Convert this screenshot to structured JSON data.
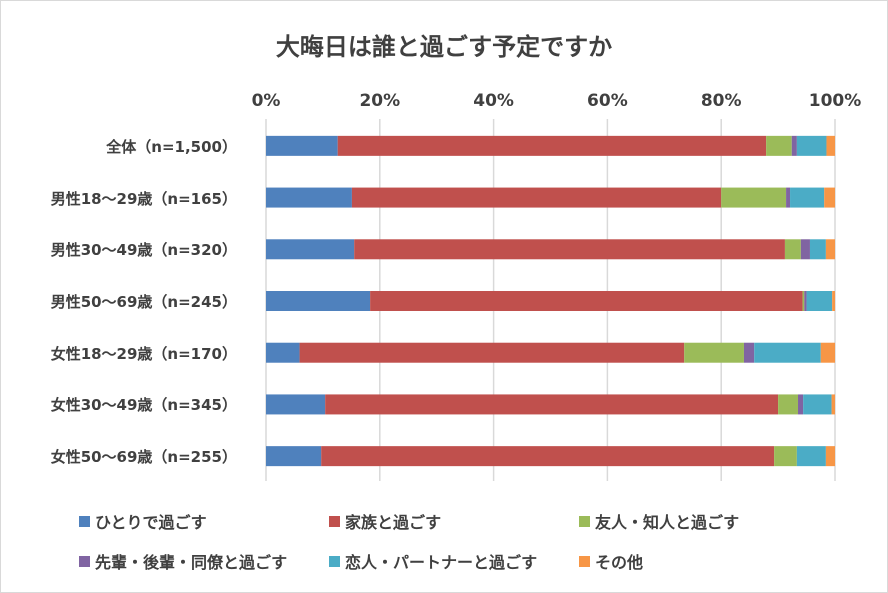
{
  "chart_data": {
    "type": "bar",
    "orientation": "horizontal",
    "stacked": "100%",
    "title": "大晦日は誰と過ごす予定ですか",
    "xlabel": "",
    "ylabel": "",
    "xlim": [
      0,
      100
    ],
    "x_ticks": [
      "0%",
      "20%",
      "40%",
      "60%",
      "80%",
      "100%"
    ],
    "grid": true,
    "legend_position": "bottom",
    "categories": [
      "全体（n=1,500）",
      "男性18～29歳（n=165）",
      "男性30～49歳（n=320）",
      "男性50～69歳（n=245）",
      "女性18～29歳（n=170）",
      "女性30～49歳（n=345）",
      "女性50～69歳（n=255）"
    ],
    "series": [
      {
        "name": "ひとりで過ごす",
        "color": "#4F81BD",
        "values": [
          12.6,
          15.1,
          15.5,
          18.3,
          5.9,
          10.4,
          9.7
        ]
      },
      {
        "name": "家族と過ごす",
        "color": "#C0504D",
        "values": [
          75.3,
          64.9,
          75.7,
          76.0,
          67.6,
          79.6,
          79.6
        ]
      },
      {
        "name": "友人・知人と過ごす",
        "color": "#9BBB59",
        "values": [
          4.5,
          11.4,
          2.8,
          0.3,
          10.5,
          3.5,
          4.0
        ]
      },
      {
        "name": "先輩・後輩・同僚と過ごす",
        "color": "#8064A2",
        "values": [
          0.9,
          0.7,
          1.6,
          0.4,
          1.8,
          0.9,
          0.0
        ]
      },
      {
        "name": "恋人・パートナーと過ごす",
        "color": "#4BACC6",
        "values": [
          5.2,
          6.0,
          2.8,
          4.5,
          11.7,
          5.0,
          5.1
        ]
      },
      {
        "name": "その他",
        "color": "#F79646",
        "values": [
          1.5,
          1.9,
          1.6,
          0.5,
          2.5,
          0.6,
          1.6
        ]
      }
    ]
  }
}
